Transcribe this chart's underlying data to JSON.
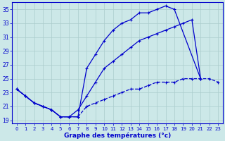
{
  "xlabel": "Graphe des températures (°c)",
  "bg_color": "#cce8e8",
  "grid_color": "#aacccc",
  "line_color": "#0000cc",
  "xmin": 0,
  "xmax": 23,
  "ymin": 19,
  "ymax": 35,
  "yticks": [
    19,
    21,
    23,
    25,
    27,
    29,
    31,
    33,
    35
  ],
  "xticks": [
    0,
    1,
    2,
    3,
    4,
    5,
    6,
    7,
    8,
    9,
    10,
    11,
    12,
    13,
    14,
    15,
    16,
    17,
    18,
    19,
    20,
    21,
    22,
    23
  ],
  "line_top_x": [
    0,
    1,
    2,
    3,
    4,
    5,
    6,
    7,
    8,
    9,
    10,
    11,
    12,
    13,
    14,
    15,
    16,
    17,
    18,
    21
  ],
  "line_top_y": [
    23.5,
    22.5,
    21.5,
    21.0,
    20.5,
    19.5,
    19.5,
    19.5,
    26.5,
    28.5,
    30.5,
    32.0,
    33.0,
    33.5,
    34.5,
    34.5,
    35.0,
    35.5,
    35.0,
    25.0
  ],
  "line_mid_x": [
    0,
    1,
    2,
    3,
    4,
    5,
    6,
    7,
    8,
    9,
    10,
    11,
    12,
    13,
    14,
    15,
    16,
    17,
    18,
    19,
    20,
    21
  ],
  "line_mid_y": [
    23.5,
    22.5,
    21.5,
    21.0,
    20.5,
    19.5,
    19.5,
    20.5,
    22.5,
    24.5,
    26.5,
    27.5,
    28.5,
    29.5,
    30.5,
    31.0,
    31.5,
    32.0,
    32.5,
    33.0,
    33.5,
    25.0
  ],
  "line_bot_x": [
    0,
    1,
    2,
    3,
    4,
    5,
    6,
    7,
    8,
    9,
    10,
    11,
    12,
    13,
    14,
    15,
    16,
    17,
    18,
    19,
    20,
    21,
    22,
    23
  ],
  "line_bot_y": [
    23.5,
    22.5,
    21.5,
    21.0,
    20.5,
    19.5,
    19.5,
    19.5,
    21.0,
    21.5,
    22.0,
    22.5,
    23.0,
    23.5,
    23.5,
    24.0,
    24.5,
    24.5,
    24.5,
    25.0,
    25.0,
    25.0,
    25.0,
    24.5
  ]
}
